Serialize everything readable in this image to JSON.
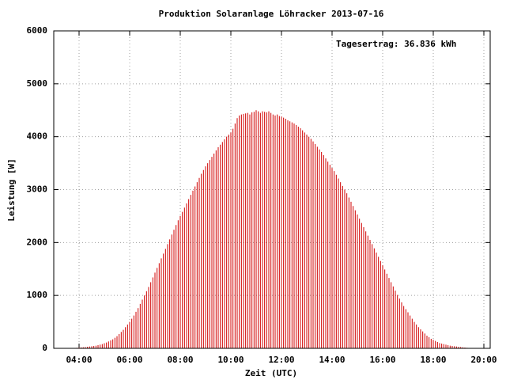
{
  "chart_data": {
    "type": "impulses",
    "title": "Produktion Solaranlage Löhracker 2013-07-16",
    "annotation": "Tagesertrag: 36.836 kWh",
    "x_label": "Zeit (UTC)",
    "y_label": "Leistung [W]",
    "color": "#d00000",
    "grid": true,
    "xlim": [
      "03:00",
      "20:15"
    ],
    "xticks": [
      "04:00",
      "06:00",
      "08:00",
      "10:00",
      "12:00",
      "14:00",
      "16:00",
      "18:00",
      "20:00"
    ],
    "ylim": [
      0,
      6000
    ],
    "yticks": [
      0,
      1000,
      2000,
      3000,
      4000,
      5000,
      6000
    ],
    "x": [
      "03:55",
      "04:00",
      "04:05",
      "04:10",
      "04:15",
      "04:20",
      "04:25",
      "04:30",
      "04:35",
      "04:40",
      "04:45",
      "04:50",
      "04:55",
      "05:00",
      "05:05",
      "05:10",
      "05:15",
      "05:20",
      "05:25",
      "05:30",
      "05:35",
      "05:40",
      "05:45",
      "05:50",
      "05:55",
      "06:00",
      "06:05",
      "06:10",
      "06:15",
      "06:20",
      "06:25",
      "06:30",
      "06:35",
      "06:40",
      "06:45",
      "06:50",
      "06:55",
      "07:00",
      "07:05",
      "07:10",
      "07:15",
      "07:20",
      "07:25",
      "07:30",
      "07:35",
      "07:40",
      "07:45",
      "07:50",
      "07:55",
      "08:00",
      "08:05",
      "08:10",
      "08:15",
      "08:20",
      "08:25",
      "08:30",
      "08:35",
      "08:40",
      "08:45",
      "08:50",
      "08:55",
      "09:00",
      "09:05",
      "09:10",
      "09:15",
      "09:20",
      "09:25",
      "09:30",
      "09:35",
      "09:40",
      "09:45",
      "09:50",
      "09:55",
      "10:00",
      "10:05",
      "10:10",
      "10:15",
      "10:20",
      "10:25",
      "10:30",
      "10:35",
      "10:40",
      "10:45",
      "10:50",
      "10:55",
      "11:00",
      "11:05",
      "11:10",
      "11:15",
      "11:20",
      "11:25",
      "11:30",
      "11:35",
      "11:40",
      "11:45",
      "11:50",
      "11:55",
      "12:00",
      "12:05",
      "12:10",
      "12:15",
      "12:20",
      "12:25",
      "12:30",
      "12:35",
      "12:40",
      "12:45",
      "12:50",
      "12:55",
      "13:00",
      "13:05",
      "13:10",
      "13:15",
      "13:20",
      "13:25",
      "13:30",
      "13:35",
      "13:40",
      "13:45",
      "13:50",
      "13:55",
      "14:00",
      "14:05",
      "14:10",
      "14:15",
      "14:20",
      "14:25",
      "14:30",
      "14:35",
      "14:40",
      "14:45",
      "14:50",
      "14:55",
      "15:00",
      "15:05",
      "15:10",
      "15:15",
      "15:20",
      "15:25",
      "15:30",
      "15:35",
      "15:40",
      "15:45",
      "15:50",
      "15:55",
      "16:00",
      "16:05",
      "16:10",
      "16:15",
      "16:20",
      "16:25",
      "16:30",
      "16:35",
      "16:40",
      "16:45",
      "16:50",
      "16:55",
      "17:00",
      "17:05",
      "17:10",
      "17:15",
      "17:20",
      "17:25",
      "17:30",
      "17:35",
      "17:40",
      "17:45",
      "17:50",
      "17:55",
      "18:00",
      "18:05",
      "18:10",
      "18:15",
      "18:20",
      "18:25",
      "18:30",
      "18:35",
      "18:40",
      "18:45",
      "18:50",
      "18:55",
      "19:00",
      "19:05",
      "19:10",
      "19:15",
      "19:20"
    ],
    "values": [
      10,
      15,
      18,
      20,
      25,
      30,
      35,
      40,
      45,
      50,
      60,
      70,
      80,
      95,
      110,
      130,
      150,
      170,
      200,
      230,
      270,
      310,
      350,
      400,
      450,
      500,
      560,
      620,
      690,
      760,
      840,
      920,
      1000,
      1080,
      1160,
      1250,
      1340,
      1430,
      1520,
      1610,
      1700,
      1790,
      1880,
      1970,
      2060,
      2150,
      2240,
      2330,
      2420,
      2500,
      2580,
      2660,
      2740,
      2820,
      2900,
      2980,
      3060,
      3140,
      3220,
      3300,
      3370,
      3440,
      3500,
      3560,
      3620,
      3680,
      3740,
      3800,
      3850,
      3900,
      3950,
      4000,
      4040,
      4080,
      4150,
      4250,
      4350,
      4400,
      4420,
      4430,
      4440,
      4450,
      4420,
      4460,
      4470,
      4500,
      4480,
      4450,
      4480,
      4470,
      4460,
      4480,
      4450,
      4420,
      4400,
      4420,
      4390,
      4380,
      4360,
      4340,
      4310,
      4290,
      4270,
      4250,
      4220,
      4190,
      4160,
      4120,
      4080,
      4040,
      4000,
      3960,
      3910,
      3860,
      3810,
      3760,
      3710,
      3650,
      3590,
      3530,
      3470,
      3410,
      3350,
      3280,
      3210,
      3140,
      3070,
      3000,
      2930,
      2850,
      2770,
      2690,
      2610,
      2530,
      2450,
      2370,
      2290,
      2210,
      2130,
      2050,
      1970,
      1890,
      1810,
      1730,
      1650,
      1570,
      1490,
      1410,
      1330,
      1250,
      1170,
      1090,
      1010,
      940,
      870,
      800,
      740,
      680,
      620,
      560,
      500,
      450,
      400,
      360,
      320,
      280,
      240,
      210,
      180,
      160,
      140,
      120,
      100,
      90,
      80,
      70,
      60,
      50,
      45,
      40,
      35,
      30,
      25,
      20,
      15,
      10
    ]
  }
}
